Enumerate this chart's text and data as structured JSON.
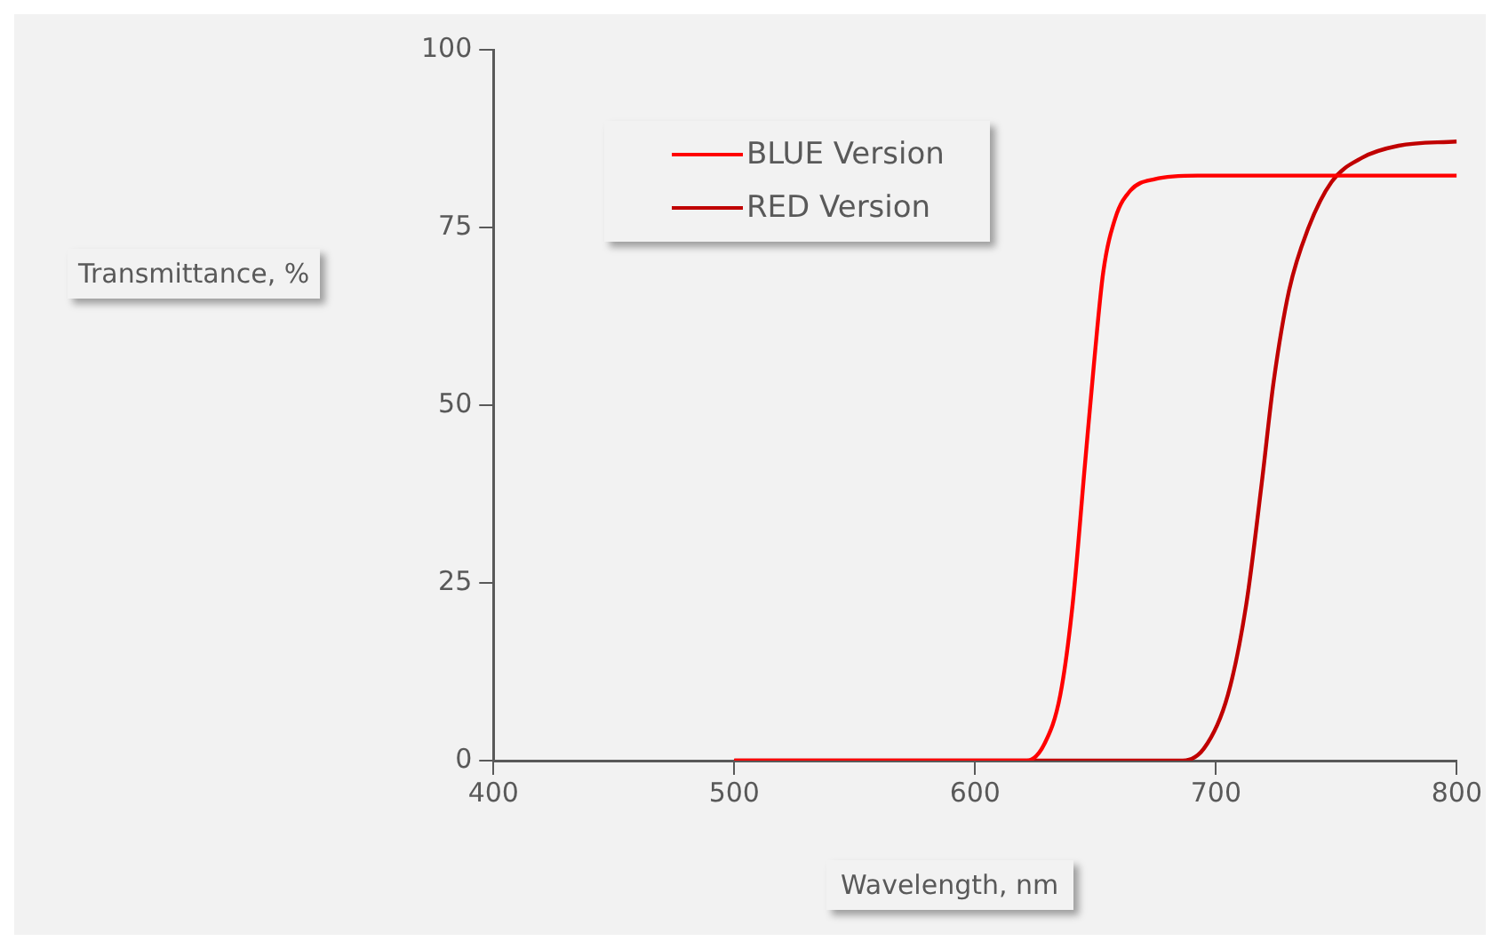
{
  "chart_data": {
    "type": "line",
    "xlabel": "Wavelength, nm",
    "ylabel": "Transmittance, %",
    "xlim": [
      400,
      800
    ],
    "xticks": [
      400,
      500,
      600,
      700,
      800
    ],
    "ylim": [
      0,
      100
    ],
    "yticks": [
      0,
      25,
      50,
      75,
      100
    ],
    "grid": false,
    "legend": "top left",
    "marker": "none",
    "line_style": "solid",
    "series": [
      {
        "name": "BLUE Version",
        "color": "#ff0000",
        "x": [
          500,
          621.5,
          629,
          635.4,
          640.5,
          645.6,
          649.4,
          653.2,
          658.2,
          664.5,
          674.6,
          692.4,
          800
        ],
        "values": [
          0,
          0,
          2.5,
          9.3,
          22,
          41.6,
          56,
          68.7,
          76.3,
          80.2,
          81.8,
          82.3,
          82.3
        ]
      },
      {
        "name": "RED Version",
        "color": "#c00000",
        "x": [
          500,
          684.8,
          695,
          705,
          712.6,
          719,
          724,
          730.4,
          738,
          748,
          760.6,
          775.8,
          800
        ],
        "values": [
          0,
          0,
          1.7,
          9.3,
          22,
          39,
          53.4,
          66.2,
          74.6,
          81.4,
          84.8,
          86.5,
          87.1
        ]
      }
    ]
  }
}
